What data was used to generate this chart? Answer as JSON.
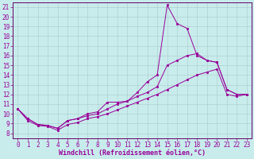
{
  "xlabel": "Windchill (Refroidissement éolien,°C)",
  "bg_color": "#c8ecec",
  "grid_color": "#b0d0d0",
  "line_color": "#990099",
  "spine_color": "#660066",
  "xlim": [
    -0.5,
    23.5
  ],
  "ylim": [
    7.5,
    21.5
  ],
  "xticks": [
    0,
    1,
    2,
    3,
    4,
    5,
    6,
    7,
    8,
    9,
    10,
    11,
    12,
    13,
    14,
    15,
    16,
    17,
    18,
    19,
    20,
    21,
    22,
    23
  ],
  "yticks": [
    8,
    9,
    10,
    11,
    12,
    13,
    14,
    15,
    16,
    17,
    18,
    19,
    20,
    21
  ],
  "line1_x": [
    0,
    1,
    2,
    3,
    4,
    5,
    6,
    7,
    8,
    9,
    10,
    11,
    12,
    13,
    14,
    15,
    16,
    17,
    18,
    19,
    20,
    21,
    22,
    23
  ],
  "line1_y": [
    10.5,
    9.5,
    8.9,
    8.8,
    8.5,
    9.3,
    9.5,
    10.0,
    10.2,
    11.2,
    11.2,
    11.3,
    12.2,
    13.3,
    14.0,
    21.2,
    19.3,
    18.8,
    16.0,
    15.5,
    15.3,
    12.5,
    12.0,
    12.0
  ],
  "line2_x": [
    0,
    1,
    2,
    3,
    4,
    5,
    6,
    7,
    8,
    9,
    10,
    11,
    12,
    13,
    14,
    15,
    16,
    17,
    18,
    19,
    20,
    21,
    22,
    23
  ],
  "line2_y": [
    10.5,
    9.5,
    8.9,
    8.8,
    8.5,
    9.3,
    9.5,
    9.8,
    10.0,
    10.5,
    11.0,
    11.3,
    11.8,
    12.2,
    12.8,
    15.0,
    15.5,
    16.0,
    16.2,
    15.5,
    15.3,
    12.5,
    12.0,
    12.0
  ],
  "line3_x": [
    0,
    1,
    2,
    3,
    4,
    5,
    6,
    7,
    8,
    9,
    10,
    11,
    12,
    13,
    14,
    15,
    16,
    17,
    18,
    19,
    20,
    21,
    22,
    23
  ],
  "line3_y": [
    10.5,
    9.3,
    8.8,
    8.7,
    8.3,
    8.9,
    9.1,
    9.5,
    9.7,
    10.0,
    10.4,
    10.8,
    11.2,
    11.6,
    12.0,
    12.5,
    13.0,
    13.5,
    14.0,
    14.3,
    14.6,
    12.0,
    11.8,
    12.0
  ],
  "tick_fontsize": 5.5,
  "xlabel_fontsize": 6.0
}
